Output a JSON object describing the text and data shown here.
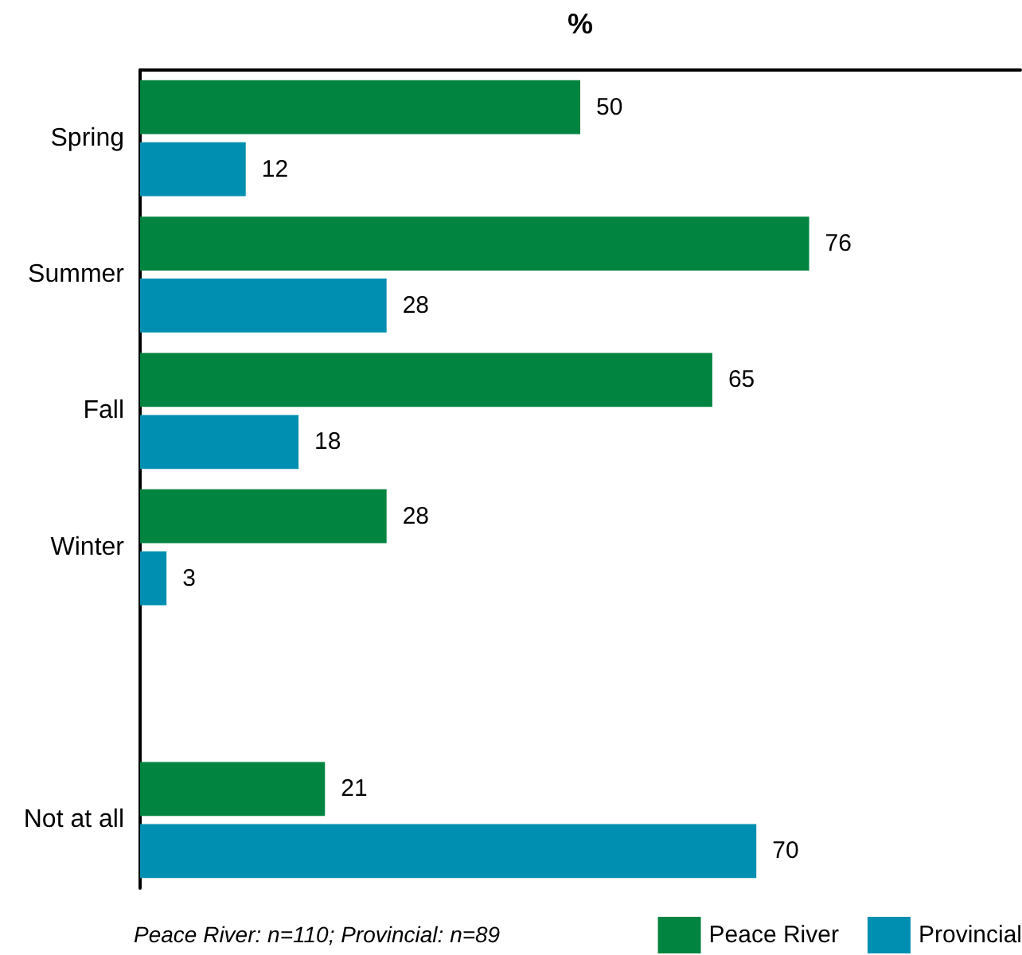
{
  "chart_data": {
    "type": "bar",
    "orientation": "horizontal",
    "xlabel": "%",
    "categories": [
      "Spring",
      "Summer",
      "Fall",
      "Winter",
      null,
      "Not at all"
    ],
    "series": [
      {
        "name": "Peace River",
        "color": "#00843f",
        "values": [
          50,
          76,
          65,
          28,
          null,
          21
        ]
      },
      {
        "name": "Provincial",
        "color": "#008fb0",
        "values": [
          12,
          28,
          18,
          3,
          null,
          70
        ]
      }
    ],
    "xlim": [
      0,
      100
    ],
    "tick_labels": "y",
    "data_labels": true,
    "legend": "bottom right",
    "annotations": [
      "Peace River: n=110; Provincial: n=89"
    ]
  }
}
